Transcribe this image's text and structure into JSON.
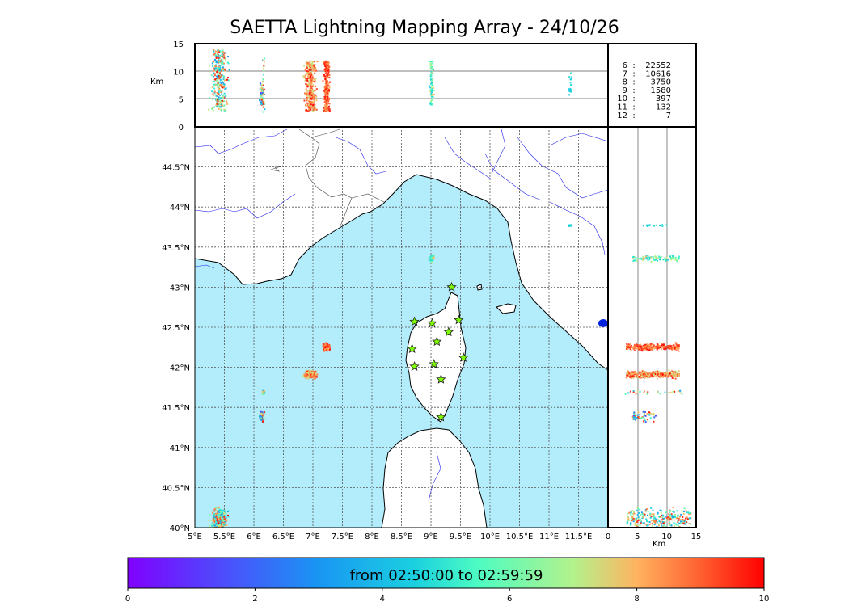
{
  "title": "SAETTA Lightning Mapping Array - 24/10/26",
  "colors": {
    "sea": "#b3ecfb",
    "land": "#ffffff",
    "coast": "#000000",
    "river": "#2222ee",
    "border": "#444444",
    "grid": "#555555",
    "station_fill": "#7fff00",
    "highlight": "#ff0000"
  },
  "station_count_table": [
    {
      "stations": "6",
      "count": "22552",
      "highlight": false
    },
    {
      "stations": "7",
      "count": "10616",
      "highlight": true
    },
    {
      "stations": "8",
      "count": "3750",
      "highlight": false
    },
    {
      "stations": "9",
      "count": "1580",
      "highlight": false
    },
    {
      "stations": "10",
      "count": "397",
      "highlight": false
    },
    {
      "stations": "11",
      "count": "132",
      "highlight": false
    },
    {
      "stations": "12",
      "count": "7",
      "highlight": false
    }
  ],
  "colorbar": {
    "label": "from 02:50:00 to 02:59:59",
    "ticks": [
      "0",
      "2",
      "4",
      "6",
      "8",
      "10"
    ],
    "colormap": "rainbow"
  },
  "chart_data": {
    "type": "scatter",
    "title": "SAETTA Lightning Mapping Array - 24/10/26",
    "map": {
      "xlim": [
        5.0,
        12.0
      ],
      "ylim": [
        40.0,
        45.0
      ],
      "xticks": [
        5.0,
        5.5,
        6.0,
        6.5,
        7.0,
        7.5,
        8.0,
        8.5,
        9.0,
        9.5,
        10.0,
        10.5,
        11.0,
        11.5
      ],
      "xtick_labels": [
        "5°E",
        "5.5°E",
        "6°E",
        "6.5°E",
        "7°E",
        "7.5°E",
        "8°E",
        "8.5°E",
        "9°E",
        "9.5°E",
        "10°E",
        "10.5°E",
        "11°E",
        "11.5°E"
      ],
      "yticks": [
        40.0,
        40.5,
        41.0,
        41.5,
        42.0,
        42.5,
        43.0,
        43.5,
        44.0,
        44.5
      ],
      "ytick_labels": [
        "40°N",
        "40.5°N",
        "41°N",
        "41.5°N",
        "42°N",
        "42.5°N",
        "43°N",
        "43.5°N",
        "44°N",
        "44.5°N"
      ],
      "grid": true
    },
    "altitude_lon_panel": {
      "ylabel": "Km",
      "ylim": [
        0,
        15
      ],
      "yticks": [
        "0",
        "5",
        "10",
        "15"
      ]
    },
    "altitude_lat_panel": {
      "xlabel": "Km",
      "xlim": [
        0,
        15
      ],
      "xticks": [
        "0",
        "5",
        "10",
        "15"
      ]
    },
    "color_scale": {
      "min": 0,
      "max": 10,
      "unit": "minutes after 02:50:00"
    },
    "stations": [
      [
        9.35,
        43.0
      ],
      [
        8.72,
        42.57
      ],
      [
        9.02,
        42.55
      ],
      [
        9.47,
        42.59
      ],
      [
        9.3,
        42.44
      ],
      [
        9.1,
        42.32
      ],
      [
        8.68,
        42.23
      ],
      [
        9.55,
        42.12
      ],
      [
        8.72,
        42.01
      ],
      [
        9.05,
        42.04
      ],
      [
        9.17,
        41.85
      ],
      [
        9.17,
        41.38
      ]
    ],
    "clusters": [
      {
        "lon": 5.4,
        "lat": 40.1,
        "rlon": 0.25,
        "rlat": 0.3,
        "zmin": 3,
        "zmax": 14,
        "n": 300,
        "tmin": 3,
        "tmax": 10
      },
      {
        "lon": 6.12,
        "lat": 41.4,
        "rlon": 0.08,
        "rlat": 0.12,
        "zmin": 4,
        "zmax": 8,
        "n": 60,
        "tmin": 1,
        "tmax": 10
      },
      {
        "lon": 6.15,
        "lat": 41.7,
        "rlon": 0.05,
        "rlat": 0.05,
        "zmin": 2,
        "zmax": 13,
        "n": 25,
        "tmin": 3,
        "tmax": 10
      },
      {
        "lon": 6.95,
        "lat": 41.92,
        "rlon": 0.18,
        "rlat": 0.08,
        "zmin": 3,
        "zmax": 12,
        "n": 300,
        "tmin": 7,
        "tmax": 10
      },
      {
        "lon": 7.22,
        "lat": 42.26,
        "rlon": 0.1,
        "rlat": 0.08,
        "zmin": 3,
        "zmax": 12,
        "n": 250,
        "tmin": 8,
        "tmax": 10
      },
      {
        "lon": 9.0,
        "lat": 43.37,
        "rlon": 0.07,
        "rlat": 0.08,
        "zmin": 4,
        "zmax": 12,
        "n": 80,
        "tmin": 4,
        "tmax": 8
      },
      {
        "lon": 11.35,
        "lat": 43.78,
        "rlon": 0.05,
        "rlat": 0.02,
        "zmin": 5,
        "zmax": 10,
        "n": 15,
        "tmin": 4,
        "tmax": 5
      }
    ]
  }
}
